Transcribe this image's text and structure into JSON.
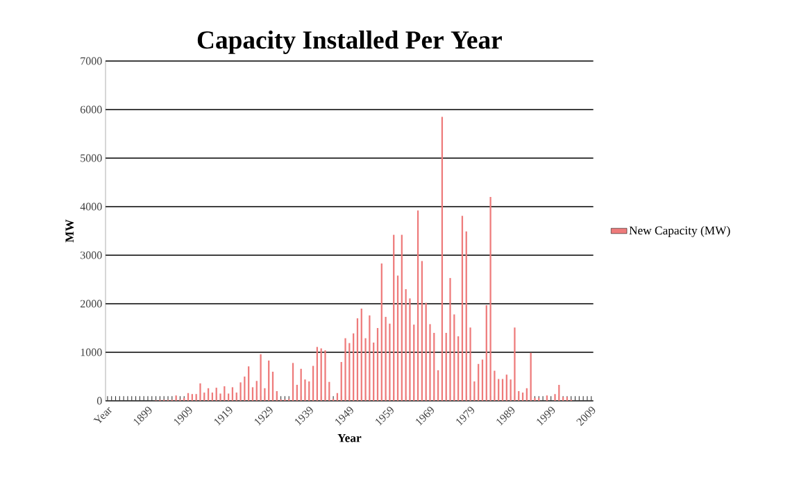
{
  "chart_data": {
    "type": "bar",
    "title": "Capacity Installed Per Year",
    "xlabel": "Year",
    "ylabel": "MW",
    "categories": [
      "Year",
      null,
      null,
      null,
      null,
      null,
      null,
      null,
      null,
      null,
      "1899",
      null,
      null,
      null,
      null,
      null,
      null,
      null,
      null,
      null,
      "1909",
      null,
      null,
      null,
      null,
      null,
      null,
      null,
      null,
      null,
      "1919",
      null,
      null,
      null,
      null,
      null,
      null,
      null,
      null,
      null,
      "1929",
      null,
      null,
      null,
      null,
      null,
      null,
      null,
      null,
      null,
      "1939",
      null,
      null,
      null,
      null,
      null,
      null,
      null,
      null,
      null,
      "1949",
      null,
      null,
      null,
      null,
      null,
      null,
      null,
      null,
      null,
      "1959",
      null,
      null,
      null,
      null,
      null,
      null,
      null,
      null,
      null,
      "1969",
      null,
      null,
      null,
      null,
      null,
      null,
      null,
      null,
      null,
      "1979",
      null,
      null,
      null,
      null,
      null,
      null,
      null,
      null,
      null,
      "1989",
      null,
      null,
      null,
      null,
      null,
      null,
      null,
      null,
      null,
      "1999",
      null,
      null,
      null,
      null,
      null,
      null,
      null,
      null,
      null,
      "2009"
    ],
    "series": [
      {
        "name": "New Capacity (MW)",
        "color": "#ee7b7b",
        "values": [
          null,
          0,
          0,
          0,
          0,
          0,
          0,
          0,
          0,
          0,
          0,
          0,
          10,
          20,
          20,
          20,
          20,
          110,
          30,
          60,
          160,
          140,
          140,
          360,
          170,
          260,
          170,
          270,
          150,
          300,
          150,
          280,
          170,
          380,
          500,
          710,
          280,
          410,
          960,
          260,
          830,
          600,
          200,
          30,
          30,
          40,
          780,
          330,
          660,
          440,
          400,
          720,
          1110,
          1080,
          1040,
          390,
          40,
          160,
          800,
          1290,
          1190,
          1390,
          1700,
          1900,
          1290,
          1760,
          1200,
          1500,
          2830,
          1730,
          1590,
          3420,
          2580,
          3420,
          2300,
          2110,
          1570,
          3920,
          2880,
          2020,
          1580,
          1400,
          630,
          5850,
          1400,
          2530,
          1780,
          1330,
          3810,
          3490,
          1510,
          400,
          760,
          850,
          1970,
          4200,
          620,
          450,
          450,
          540,
          440,
          1510,
          200,
          170,
          260,
          990,
          60,
          60,
          0,
          110,
          0,
          140,
          330,
          80,
          80,
          20,
          0,
          0,
          0,
          0,
          0
        ]
      }
    ],
    "ylim": [
      0,
      7000
    ],
    "yticks": [
      0,
      1000,
      2000,
      3000,
      4000,
      5000,
      6000,
      7000
    ],
    "grid": "y",
    "legend": "right"
  }
}
